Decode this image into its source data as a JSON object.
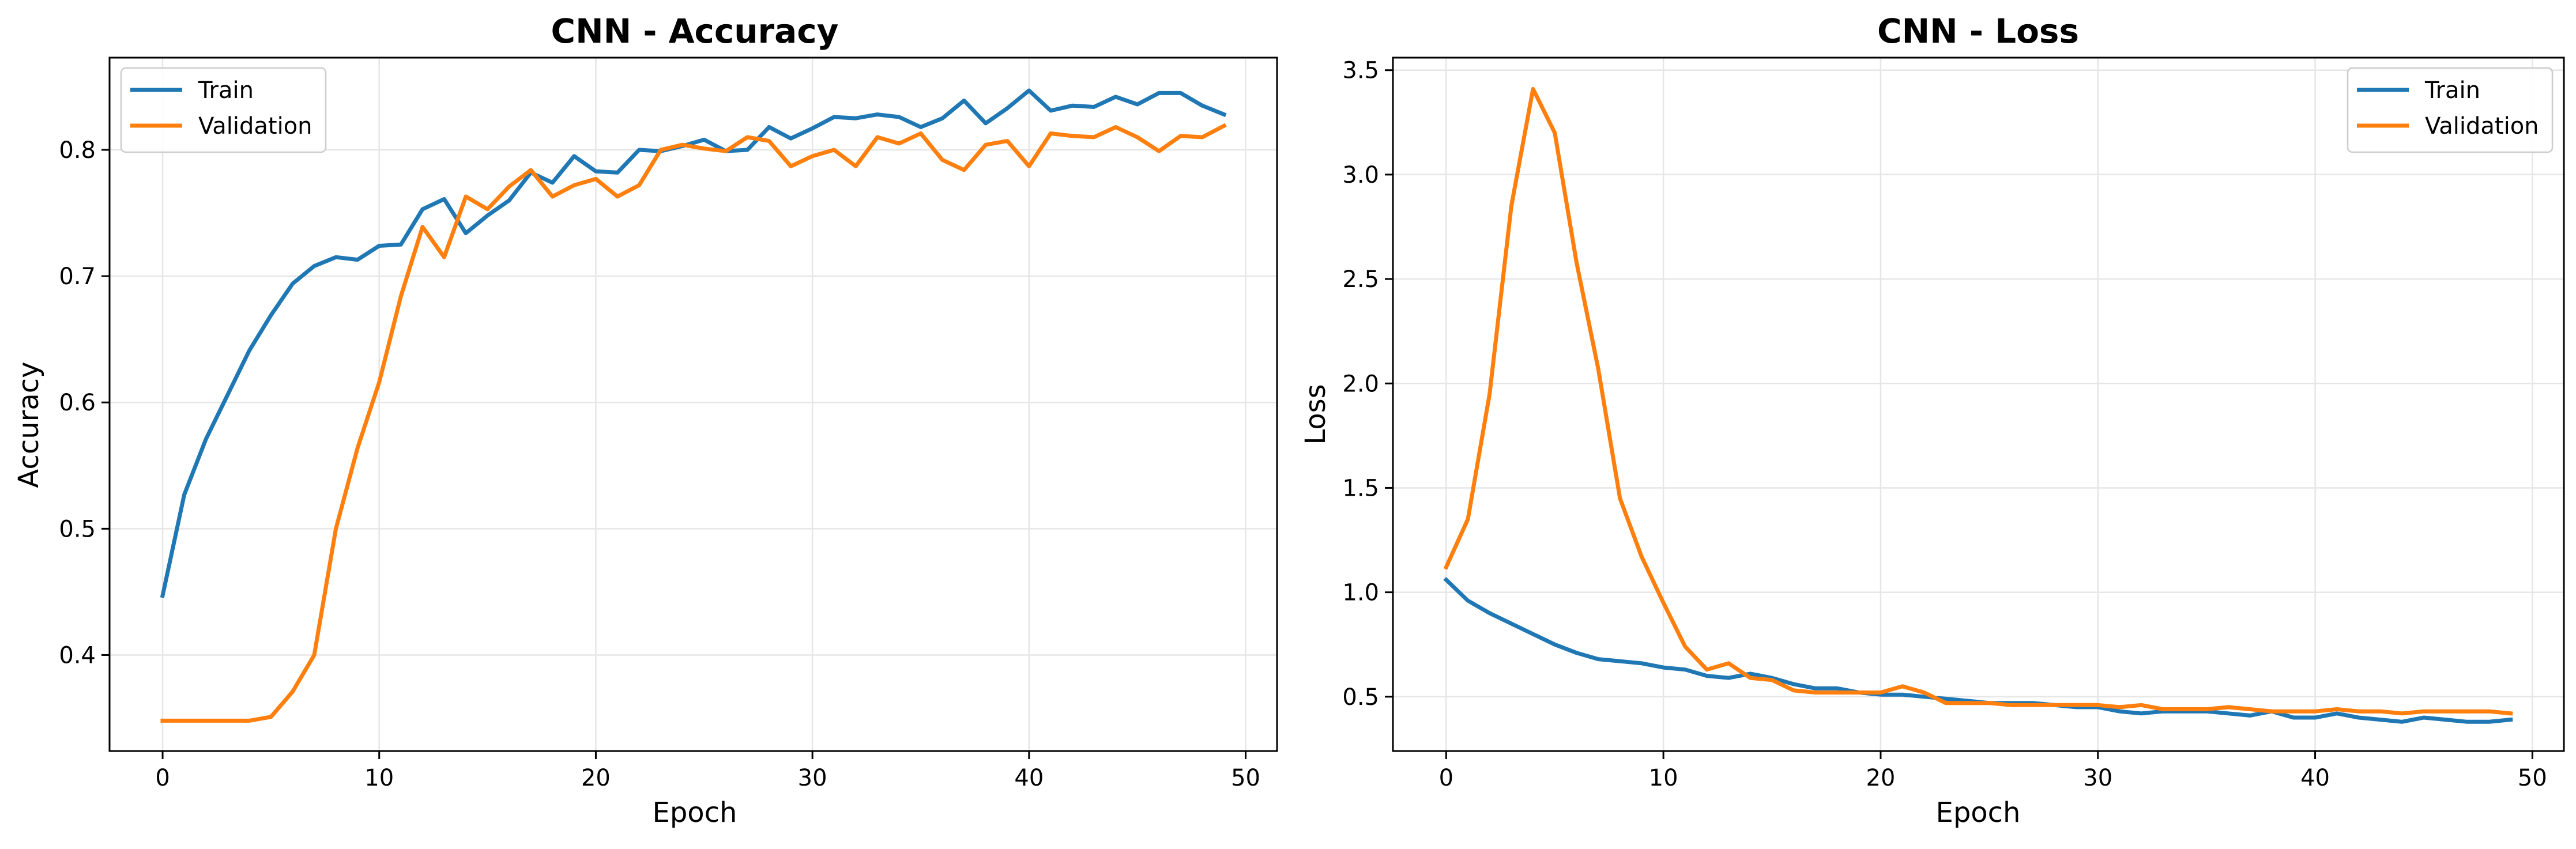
{
  "colors": {
    "train": "#1f77b4",
    "validation": "#ff7f0e",
    "grid": "#e6e6e6",
    "axes": "#000000"
  },
  "chart_data": [
    {
      "type": "line",
      "title": "CNN - Accuracy",
      "xlabel": "Epoch",
      "ylabel": "Accuracy",
      "xlim": [
        -2.45,
        51.45
      ],
      "ylim": [
        0.324,
        0.873
      ],
      "xticks": [
        0,
        10,
        20,
        30,
        40,
        50
      ],
      "yticks": [
        0.4,
        0.5,
        0.6,
        0.7,
        0.8
      ],
      "ytick_labels": [
        "0.4",
        "0.5",
        "0.6",
        "0.7",
        "0.8"
      ],
      "grid": true,
      "legend": "upper left",
      "x": [
        0,
        1,
        2,
        3,
        4,
        5,
        6,
        7,
        8,
        9,
        10,
        11,
        12,
        13,
        14,
        15,
        16,
        17,
        18,
        19,
        20,
        21,
        22,
        23,
        24,
        25,
        26,
        27,
        28,
        29,
        30,
        31,
        32,
        33,
        34,
        35,
        36,
        37,
        38,
        39,
        40,
        41,
        42,
        43,
        44,
        45,
        46,
        47,
        48,
        49
      ],
      "series": [
        {
          "name": "Train",
          "color": "#1f77b4",
          "values": [
            0.447,
            0.527,
            0.571,
            0.606,
            0.641,
            0.669,
            0.694,
            0.708,
            0.715,
            0.713,
            0.724,
            0.725,
            0.753,
            0.761,
            0.734,
            0.748,
            0.76,
            0.782,
            0.774,
            0.795,
            0.783,
            0.782,
            0.8,
            0.799,
            0.803,
            0.808,
            0.799,
            0.8,
            0.818,
            0.809,
            0.817,
            0.826,
            0.825,
            0.828,
            0.826,
            0.818,
            0.825,
            0.839,
            0.821,
            0.833,
            0.847,
            0.831,
            0.835,
            0.834,
            0.842,
            0.836,
            0.845,
            0.845,
            0.835,
            0.828
          ]
        },
        {
          "name": "Validation",
          "color": "#ff7f0e",
          "values": [
            0.348,
            0.348,
            0.348,
            0.348,
            0.348,
            0.351,
            0.371,
            0.4,
            0.5,
            0.564,
            0.616,
            0.684,
            0.739,
            0.715,
            0.763,
            0.753,
            0.771,
            0.784,
            0.763,
            0.772,
            0.777,
            0.763,
            0.772,
            0.8,
            0.804,
            0.801,
            0.799,
            0.81,
            0.807,
            0.787,
            0.795,
            0.8,
            0.787,
            0.81,
            0.805,
            0.813,
            0.792,
            0.784,
            0.804,
            0.807,
            0.787,
            0.813,
            0.811,
            0.81,
            0.818,
            0.81,
            0.799,
            0.811,
            0.81,
            0.819
          ]
        }
      ]
    },
    {
      "type": "line",
      "title": "CNN - Loss",
      "xlabel": "Epoch",
      "ylabel": "Loss",
      "xlim": [
        -2.45,
        51.45
      ],
      "ylim": [
        0.24,
        3.56
      ],
      "xticks": [
        0,
        10,
        20,
        30,
        40,
        50
      ],
      "yticks": [
        0.5,
        1.0,
        1.5,
        2.0,
        2.5,
        3.0,
        3.5
      ],
      "ytick_labels": [
        "0.5",
        "1.0",
        "1.5",
        "2.0",
        "2.5",
        "3.0",
        "3.5"
      ],
      "grid": true,
      "legend": "upper right",
      "x": [
        0,
        1,
        2,
        3,
        4,
        5,
        6,
        7,
        8,
        9,
        10,
        11,
        12,
        13,
        14,
        15,
        16,
        17,
        18,
        19,
        20,
        21,
        22,
        23,
        24,
        25,
        26,
        27,
        28,
        29,
        30,
        31,
        32,
        33,
        34,
        35,
        36,
        37,
        38,
        39,
        40,
        41,
        42,
        43,
        44,
        45,
        46,
        47,
        48,
        49
      ],
      "series": [
        {
          "name": "Train",
          "color": "#1f77b4",
          "values": [
            1.06,
            0.96,
            0.9,
            0.85,
            0.8,
            0.75,
            0.71,
            0.68,
            0.67,
            0.66,
            0.64,
            0.63,
            0.6,
            0.59,
            0.61,
            0.59,
            0.56,
            0.54,
            0.54,
            0.52,
            0.51,
            0.51,
            0.5,
            0.49,
            0.48,
            0.47,
            0.47,
            0.47,
            0.46,
            0.45,
            0.45,
            0.43,
            0.42,
            0.43,
            0.43,
            0.43,
            0.42,
            0.41,
            0.43,
            0.4,
            0.4,
            0.42,
            0.4,
            0.39,
            0.38,
            0.4,
            0.39,
            0.38,
            0.38,
            0.39
          ]
        },
        {
          "name": "Validation",
          "color": "#ff7f0e",
          "values": [
            1.12,
            1.35,
            1.95,
            2.85,
            3.41,
            3.2,
            2.58,
            2.07,
            1.45,
            1.17,
            0.95,
            0.74,
            0.63,
            0.66,
            0.59,
            0.58,
            0.53,
            0.52,
            0.52,
            0.52,
            0.52,
            0.55,
            0.52,
            0.47,
            0.47,
            0.47,
            0.46,
            0.46,
            0.46,
            0.46,
            0.46,
            0.45,
            0.46,
            0.44,
            0.44,
            0.44,
            0.45,
            0.44,
            0.43,
            0.43,
            0.43,
            0.44,
            0.43,
            0.43,
            0.42,
            0.43,
            0.43,
            0.43,
            0.43,
            0.42
          ]
        }
      ]
    }
  ]
}
